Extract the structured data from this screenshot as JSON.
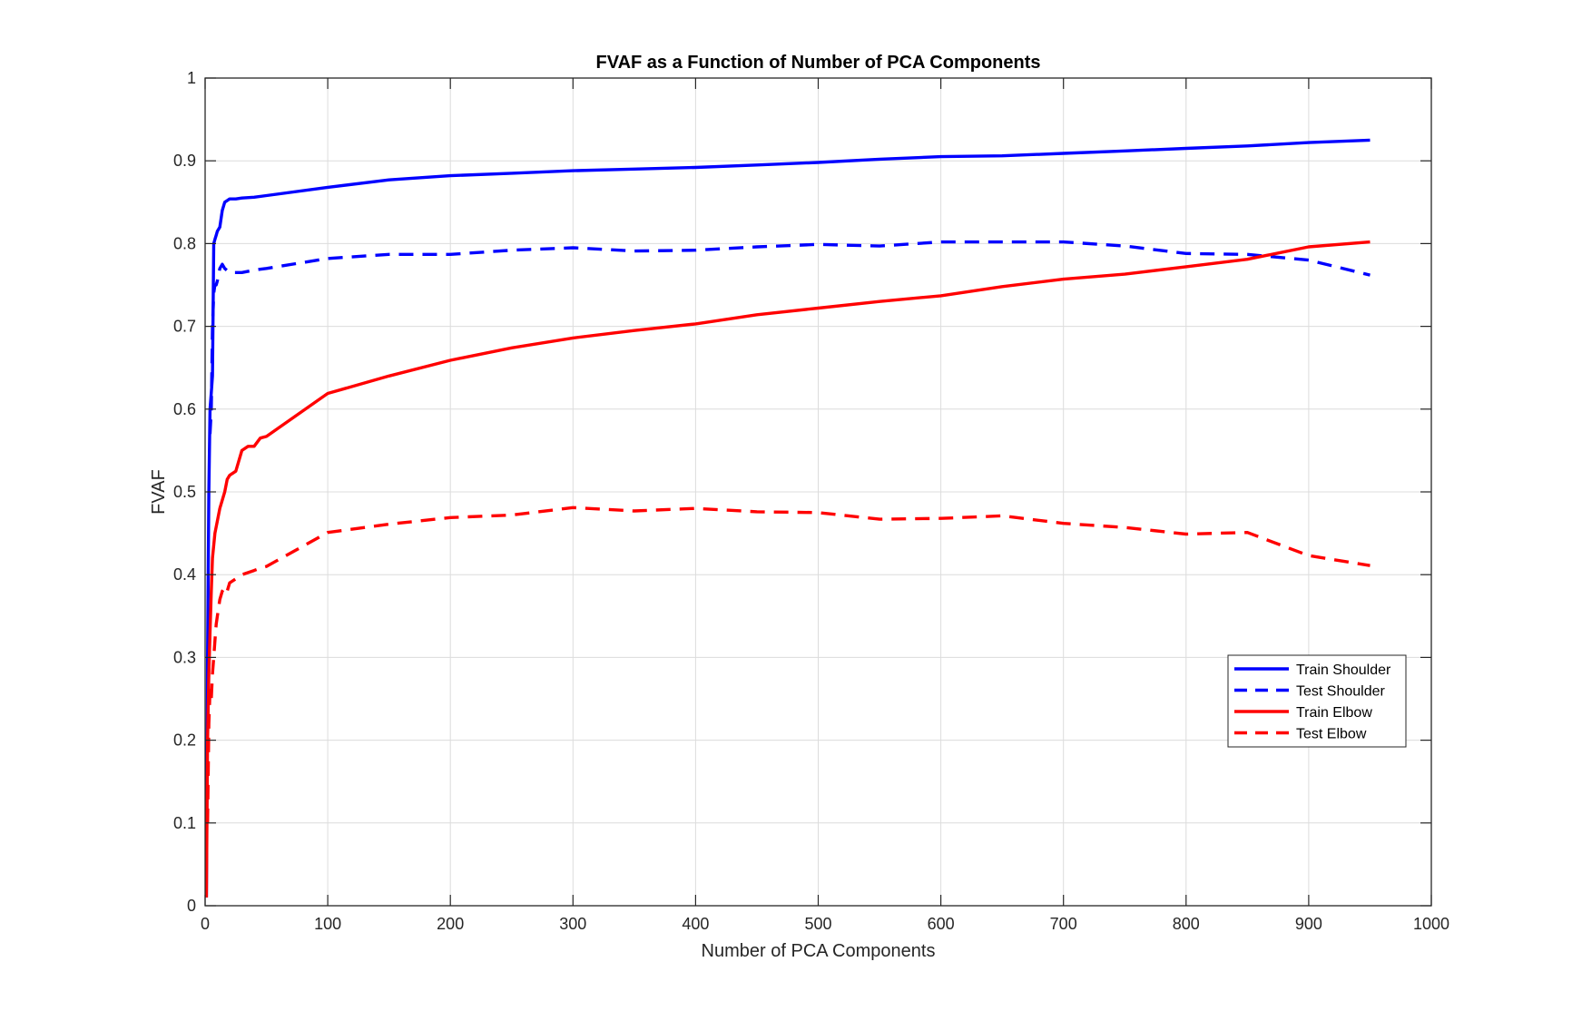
{
  "chart_data": {
    "type": "line",
    "title": "FVAF as a Function of Number of PCA Components",
    "xlabel": "Number of PCA Components",
    "ylabel": "FVAF",
    "xlim": [
      0,
      1000
    ],
    "ylim": [
      0,
      1
    ],
    "xticks": [
      0,
      100,
      200,
      300,
      400,
      500,
      600,
      700,
      800,
      900,
      1000
    ],
    "yticks": [
      0,
      0.1,
      0.2,
      0.3,
      0.4,
      0.5,
      0.6,
      0.7,
      0.8,
      0.9,
      1
    ],
    "xtick_labels": [
      "0",
      "100",
      "200",
      "300",
      "400",
      "500",
      "600",
      "700",
      "800",
      "900",
      "1000"
    ],
    "ytick_labels": [
      "0",
      "0.1",
      "0.2",
      "0.3",
      "0.4",
      "0.5",
      "0.6",
      "0.7",
      "0.8",
      "0.9",
      "1"
    ],
    "grid": true,
    "legend_position": "right",
    "series": [
      {
        "name": "Train Shoulder",
        "color": "#0000ff",
        "style": "solid",
        "x": [
          1,
          2,
          3,
          4,
          5,
          6,
          7,
          8,
          9,
          10,
          12,
          14,
          16,
          18,
          20,
          25,
          30,
          40,
          50,
          100,
          150,
          200,
          250,
          300,
          350,
          400,
          450,
          500,
          550,
          600,
          650,
          700,
          750,
          800,
          850,
          900,
          950
        ],
        "values": [
          0.01,
          0.3,
          0.5,
          0.6,
          0.62,
          0.64,
          0.8,
          0.805,
          0.81,
          0.815,
          0.82,
          0.84,
          0.85,
          0.852,
          0.854,
          0.854,
          0.855,
          0.856,
          0.858,
          0.868,
          0.877,
          0.882,
          0.885,
          0.888,
          0.89,
          0.892,
          0.895,
          0.898,
          0.902,
          0.905,
          0.906,
          0.909,
          0.912,
          0.915,
          0.918,
          0.922,
          0.925
        ]
      },
      {
        "name": "Test Shoulder",
        "color": "#0000ff",
        "style": "dashed",
        "x": [
          4,
          5,
          6,
          7,
          8,
          9,
          10,
          12,
          14,
          16,
          20,
          30,
          40,
          50,
          100,
          150,
          200,
          250,
          300,
          350,
          400,
          450,
          500,
          550,
          600,
          650,
          700,
          750,
          800,
          850,
          900,
          950
        ],
        "values": [
          0.57,
          0.6,
          0.7,
          0.74,
          0.75,
          0.75,
          0.755,
          0.77,
          0.775,
          0.77,
          0.765,
          0.765,
          0.768,
          0.77,
          0.782,
          0.787,
          0.787,
          0.792,
          0.795,
          0.791,
          0.792,
          0.796,
          0.799,
          0.797,
          0.802,
          0.802,
          0.802,
          0.797,
          0.788,
          0.787,
          0.78,
          0.762
        ]
      },
      {
        "name": "Train Elbow",
        "color": "#ff0000",
        "style": "solid",
        "x": [
          1,
          2,
          3,
          4,
          5,
          6,
          8,
          10,
          12,
          14,
          16,
          18,
          20,
          22,
          25,
          30,
          35,
          40,
          45,
          50,
          100,
          150,
          200,
          250,
          300,
          350,
          400,
          450,
          500,
          550,
          600,
          650,
          700,
          750,
          800,
          850,
          900,
          950
        ],
        "values": [
          0.01,
          0.2,
          0.28,
          0.33,
          0.38,
          0.42,
          0.45,
          0.465,
          0.48,
          0.49,
          0.5,
          0.515,
          0.52,
          0.522,
          0.525,
          0.55,
          0.555,
          0.555,
          0.565,
          0.567,
          0.619,
          0.64,
          0.659,
          0.674,
          0.686,
          0.695,
          0.703,
          0.714,
          0.722,
          0.73,
          0.737,
          0.748,
          0.757,
          0.763,
          0.772,
          0.781,
          0.796,
          0.802
        ]
      },
      {
        "name": "Test Elbow",
        "color": "#ff0000",
        "style": "dashed",
        "x": [
          2,
          3,
          4,
          5,
          6,
          7,
          8,
          9,
          10,
          12,
          14,
          16,
          18,
          20,
          25,
          30,
          40,
          45,
          50,
          100,
          150,
          200,
          250,
          300,
          350,
          400,
          450,
          500,
          550,
          600,
          650,
          700,
          750,
          800,
          850,
          900,
          950
        ],
        "values": [
          0.1,
          0.22,
          0.26,
          0.25,
          0.28,
          0.3,
          0.32,
          0.34,
          0.35,
          0.37,
          0.38,
          0.385,
          0.38,
          0.39,
          0.395,
          0.4,
          0.405,
          0.408,
          0.41,
          0.451,
          0.461,
          0.469,
          0.472,
          0.481,
          0.477,
          0.48,
          0.476,
          0.475,
          0.467,
          0.468,
          0.471,
          0.462,
          0.457,
          0.449,
          0.451,
          0.423,
          0.411
        ]
      }
    ]
  }
}
